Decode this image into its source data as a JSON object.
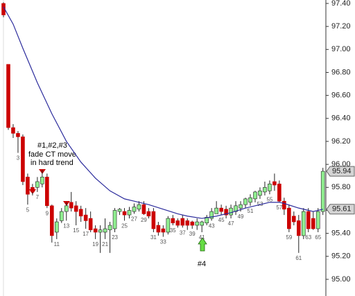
{
  "chart_data": {
    "type": "candlestick",
    "categories": [
      null,
      null,
      null,
      3,
      null,
      5,
      null,
      7,
      null,
      9,
      null,
      11,
      null,
      13,
      null,
      15,
      null,
      17,
      null,
      19,
      null,
      21,
      null,
      23,
      null,
      25,
      null,
      27,
      null,
      29,
      null,
      31,
      null,
      33,
      null,
      35,
      null,
      37,
      null,
      39,
      null,
      41,
      null,
      43,
      null,
      45,
      null,
      47,
      null,
      49,
      null,
      51,
      null,
      53,
      null,
      55,
      null,
      57,
      null,
      59,
      null,
      61,
      null,
      63,
      null,
      65,
      null
    ],
    "open": [
      97.4,
      96.87,
      96.32,
      96.27,
      96.24,
      95.89,
      95.8,
      95.8,
      95.83,
      95.89,
      95.64,
      95.41,
      95.51,
      95.59,
      95.67,
      95.64,
      95.61,
      95.56,
      95.53,
      95.44,
      95.41,
      95.41,
      95.43,
      95.44,
      95.59,
      95.59,
      95.56,
      95.59,
      95.61,
      95.65,
      95.59,
      95.59,
      95.47,
      95.44,
      95.41,
      95.53,
      95.51,
      95.53,
      95.51,
      95.5,
      95.47,
      95.47,
      95.49,
      95.53,
      95.57,
      95.62,
      95.61,
      95.56,
      95.59,
      95.62,
      95.65,
      95.67,
      95.7,
      95.73,
      95.76,
      95.77,
      95.85,
      95.83,
      95.68,
      95.62,
      95.55,
      95.51,
      95.38,
      95.59,
      95.53,
      95.44,
      95.59
    ],
    "high": [
      97.41,
      96.87,
      96.35,
      96.29,
      96.26,
      95.92,
      95.83,
      95.89,
      95.95,
      95.92,
      95.65,
      95.53,
      95.62,
      95.67,
      95.76,
      95.68,
      95.64,
      95.62,
      95.59,
      95.47,
      95.47,
      95.53,
      95.5,
      95.62,
      95.62,
      95.62,
      95.63,
      95.66,
      95.68,
      95.68,
      95.62,
      95.62,
      95.5,
      95.47,
      95.55,
      95.56,
      95.53,
      95.56,
      95.53,
      95.51,
      95.53,
      95.51,
      95.56,
      95.62,
      95.68,
      95.65,
      95.64,
      95.65,
      95.68,
      95.68,
      95.71,
      95.74,
      95.77,
      95.8,
      95.85,
      95.86,
      95.92,
      95.86,
      95.71,
      95.65,
      95.59,
      95.56,
      95.62,
      95.62,
      95.59,
      95.62,
      95.97
    ],
    "low": [
      97.28,
      96.3,
      96.23,
      96.1,
      95.82,
      95.65,
      95.73,
      95.76,
      95.8,
      95.62,
      95.32,
      95.35,
      95.49,
      95.51,
      95.59,
      95.47,
      95.5,
      95.44,
      95.41,
      95.35,
      95.23,
      95.35,
      95.23,
      95.41,
      95.56,
      95.51,
      95.53,
      95.57,
      95.59,
      95.56,
      95.53,
      95.41,
      95.38,
      95.37,
      95.39,
      95.47,
      95.45,
      95.45,
      95.43,
      95.44,
      95.43,
      95.41,
      95.47,
      95.51,
      95.57,
      95.56,
      95.53,
      95.53,
      95.56,
      95.59,
      95.62,
      95.64,
      95.67,
      95.7,
      95.73,
      95.74,
      95.77,
      95.67,
      95.56,
      95.41,
      95.47,
      95.23,
      95.35,
      95.41,
      95.43,
      95.41,
      95.56
    ],
    "close": [
      97.3,
      96.32,
      96.27,
      96.24,
      95.85,
      95.74,
      95.76,
      95.85,
      95.89,
      95.64,
      95.38,
      95.5,
      95.59,
      95.64,
      95.62,
      95.59,
      95.55,
      95.51,
      95.43,
      95.41,
      95.43,
      95.44,
      95.47,
      95.6,
      95.61,
      95.56,
      95.6,
      95.63,
      95.65,
      95.57,
      95.55,
      95.44,
      95.41,
      95.41,
      95.53,
      95.49,
      95.47,
      95.47,
      95.47,
      95.47,
      95.5,
      95.5,
      95.54,
      95.59,
      95.62,
      95.59,
      95.56,
      95.62,
      95.64,
      95.65,
      95.7,
      95.71,
      95.76,
      95.77,
      95.8,
      95.83,
      95.82,
      95.68,
      95.61,
      95.44,
      95.5,
      95.38,
      95.59,
      95.44,
      95.44,
      95.59,
      95.94
    ],
    "up_color": "#90ee90",
    "down_color": "#cc0000",
    "ma": {
      "color": "#2b2b9c",
      "x": [
        0,
        2,
        4,
        7,
        10,
        13,
        16,
        19,
        22,
        25,
        27,
        30,
        33,
        36,
        38,
        41,
        44,
        47,
        50,
        53,
        55,
        57,
        58,
        61,
        64,
        66
      ],
      "values": [
        97.37,
        97.22,
        97.01,
        96.71,
        96.44,
        96.2,
        96.02,
        95.88,
        95.77,
        95.7,
        95.68,
        95.65,
        95.61,
        95.57,
        95.55,
        95.53,
        95.55,
        95.58,
        95.62,
        95.65,
        95.67,
        95.67,
        95.66,
        95.62,
        95.59,
        95.61
      ]
    },
    "price_tags": [
      95.94,
      95.61
    ],
    "ylim": [
      94.855,
      97.43
    ],
    "yticks": [
      {
        "value": 95.0,
        "label": "95.00"
      },
      {
        "value": 95.2,
        "label": "95.20"
      },
      {
        "value": 95.4,
        "label": "95.40"
      },
      {
        "value": 95.6,
        "label": "95.60"
      },
      {
        "value": 95.8,
        "label": "95.80"
      },
      {
        "value": 96.0,
        "label": "96.00"
      },
      {
        "value": 96.2,
        "label": "96.20"
      },
      {
        "value": 96.4,
        "label": "96.40"
      },
      {
        "value": 96.6,
        "label": "96.60"
      },
      {
        "value": 96.8,
        "label": "96.80"
      },
      {
        "value": 97.0,
        "label": "97.00"
      },
      {
        "value": 97.2,
        "label": "97.20"
      },
      {
        "value": 97.4,
        "label": "97.40"
      }
    ],
    "annotations": [
      "#1,#2,#3",
      "fade CT move",
      "in hard trend",
      "#4"
    ]
  }
}
